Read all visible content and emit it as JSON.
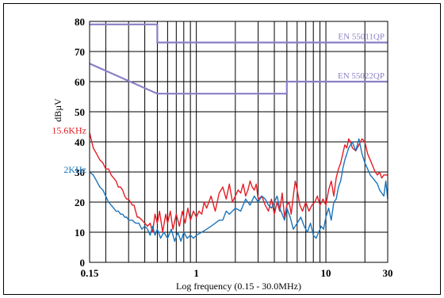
{
  "chart_data": {
    "type": "line",
    "title": "",
    "xlabel": "Log frequency (0.15 - 30.0MHz)",
    "ylabel": "dBµV",
    "xscale": "log",
    "xlim": [
      0.15,
      30
    ],
    "ylim": [
      0,
      80
    ],
    "x_tick_labels": [
      {
        "value": 0.15,
        "label": "0.15"
      },
      {
        "value": 1,
        "label": "1"
      },
      {
        "value": 10,
        "label": "10"
      },
      {
        "value": 30,
        "label": "30"
      }
    ],
    "y_tick_labels": [
      {
        "value": 0,
        "label": "0"
      },
      {
        "value": 10,
        "label": "10"
      },
      {
        "value": 20,
        "label": "20"
      },
      {
        "value": 30,
        "label": "30"
      },
      {
        "value": 40,
        "label": "40"
      },
      {
        "value": 50,
        "label": "50"
      },
      {
        "value": 60,
        "label": "60"
      },
      {
        "value": 70,
        "label": "70"
      },
      {
        "value": 80,
        "label": "80"
      }
    ],
    "grid": true,
    "limit_lines": [
      {
        "name": "EN 55011QP",
        "color": "#8a7fc6",
        "points": [
          [
            0.15,
            79
          ],
          [
            0.5,
            79
          ],
          [
            0.5,
            73
          ],
          [
            30,
            73
          ]
        ]
      },
      {
        "name": "EN 55022QP",
        "color": "#8a7fc6",
        "points": [
          [
            0.15,
            66
          ],
          [
            0.5,
            56
          ],
          [
            5,
            56
          ],
          [
            5,
            60
          ],
          [
            30,
            60
          ]
        ]
      }
    ],
    "series": [
      {
        "name": "15.6KHz",
        "color": "#e41e26",
        "x": [
          0.15,
          0.16,
          0.17,
          0.18,
          0.19,
          0.2,
          0.21,
          0.22,
          0.23,
          0.24,
          0.25,
          0.26,
          0.27,
          0.28,
          0.29,
          0.3,
          0.31,
          0.32,
          0.33,
          0.34,
          0.35,
          0.36,
          0.38,
          0.4,
          0.42,
          0.44,
          0.46,
          0.48,
          0.5,
          0.52,
          0.55,
          0.58,
          0.6,
          0.63,
          0.66,
          0.7,
          0.74,
          0.78,
          0.82,
          0.86,
          0.9,
          0.95,
          1.0,
          1.05,
          1.1,
          1.15,
          1.2,
          1.3,
          1.4,
          1.5,
          1.6,
          1.7,
          1.8,
          1.9,
          2.0,
          2.1,
          2.2,
          2.3,
          2.4,
          2.5,
          2.6,
          2.7,
          2.8,
          2.9,
          3.0,
          3.2,
          3.4,
          3.6,
          3.8,
          4.0,
          4.2,
          4.4,
          4.6,
          4.8,
          5.0,
          5.2,
          5.4,
          5.6,
          5.8,
          6.0,
          6.3,
          6.6,
          7.0,
          7.4,
          7.8,
          8.2,
          8.6,
          9.0,
          9.5,
          10,
          10.5,
          11,
          11.5,
          12,
          12.5,
          13,
          13.5,
          14,
          14.5,
          15,
          15.5,
          16,
          17,
          18,
          19,
          20,
          21,
          22,
          23,
          24,
          25,
          26,
          27,
          28,
          29,
          30
        ],
        "y": [
          43,
          38,
          36,
          34,
          33,
          31,
          31,
          29,
          28,
          27,
          25,
          25,
          24,
          22,
          21,
          21,
          20,
          19,
          19,
          17,
          15,
          15,
          14,
          13,
          12,
          13,
          10,
          16,
          13,
          17,
          10,
          16,
          13,
          17,
          11,
          16,
          12,
          17,
          13,
          18,
          14,
          17,
          15,
          17,
          16,
          20,
          18,
          22,
          17,
          23,
          25,
          21,
          26,
          20,
          22,
          24,
          23,
          26,
          22,
          24,
          27,
          25,
          24,
          26,
          21,
          22,
          19,
          17,
          21,
          16,
          20,
          17,
          23,
          15,
          19,
          20,
          16,
          22,
          27,
          24,
          19,
          17,
          20,
          17,
          19,
          20,
          22,
          19,
          21,
          19,
          24,
          27,
          22,
          28,
          31,
          33,
          36,
          39,
          38,
          41,
          40,
          38,
          37,
          39,
          41,
          40,
          36,
          34,
          32,
          30,
          29,
          30,
          28,
          29,
          29,
          29
        ]
      },
      {
        "name": "2KHz",
        "color": "#1b75bc",
        "x": [
          0.15,
          0.16,
          0.17,
          0.18,
          0.19,
          0.2,
          0.21,
          0.22,
          0.23,
          0.24,
          0.25,
          0.26,
          0.27,
          0.28,
          0.29,
          0.3,
          0.32,
          0.34,
          0.36,
          0.38,
          0.4,
          0.42,
          0.44,
          0.46,
          0.48,
          0.5,
          0.53,
          0.56,
          0.6,
          0.64,
          0.68,
          0.72,
          0.76,
          0.8,
          0.85,
          0.9,
          0.95,
          1.0,
          1.1,
          1.2,
          1.3,
          1.4,
          1.5,
          1.6,
          1.7,
          1.8,
          1.9,
          2.0,
          2.2,
          2.4,
          2.6,
          2.8,
          3.0,
          3.2,
          3.4,
          3.6,
          3.8,
          4.0,
          4.2,
          4.4,
          4.6,
          4.8,
          5.0,
          5.3,
          5.6,
          6.0,
          6.4,
          6.8,
          7.2,
          7.6,
          8.0,
          8.4,
          8.8,
          9.2,
          9.6,
          10,
          10.5,
          11,
          11.5,
          12,
          12.5,
          13,
          13.5,
          14,
          14.5,
          15,
          16,
          17,
          18,
          19,
          20,
          21,
          22,
          23,
          24,
          25,
          26,
          27,
          28,
          29,
          30
        ],
        "y": [
          30,
          29,
          27,
          25,
          24,
          22,
          20,
          19,
          18,
          17,
          17,
          16,
          16,
          15,
          15,
          14,
          14,
          13,
          13,
          11,
          12,
          11,
          9,
          12,
          9,
          11,
          8,
          10,
          8,
          11,
          7,
          10,
          7,
          10,
          8,
          9,
          8,
          9,
          10,
          11,
          12,
          13,
          14,
          14,
          17,
          16,
          17,
          18,
          17,
          21,
          19,
          22,
          20,
          22,
          21,
          19,
          18,
          20,
          22,
          18,
          16,
          14,
          18,
          15,
          11,
          13,
          15,
          12,
          10,
          13,
          9,
          8,
          10,
          12,
          11,
          15,
          18,
          14,
          20,
          21,
          25,
          27,
          31,
          34,
          36,
          38,
          40,
          37,
          41,
          36,
          33,
          31,
          29,
          28,
          27,
          26,
          24,
          23,
          22,
          27,
          21
        ]
      }
    ],
    "series_labels": [
      "15.6KHz",
      "2KHz"
    ]
  }
}
